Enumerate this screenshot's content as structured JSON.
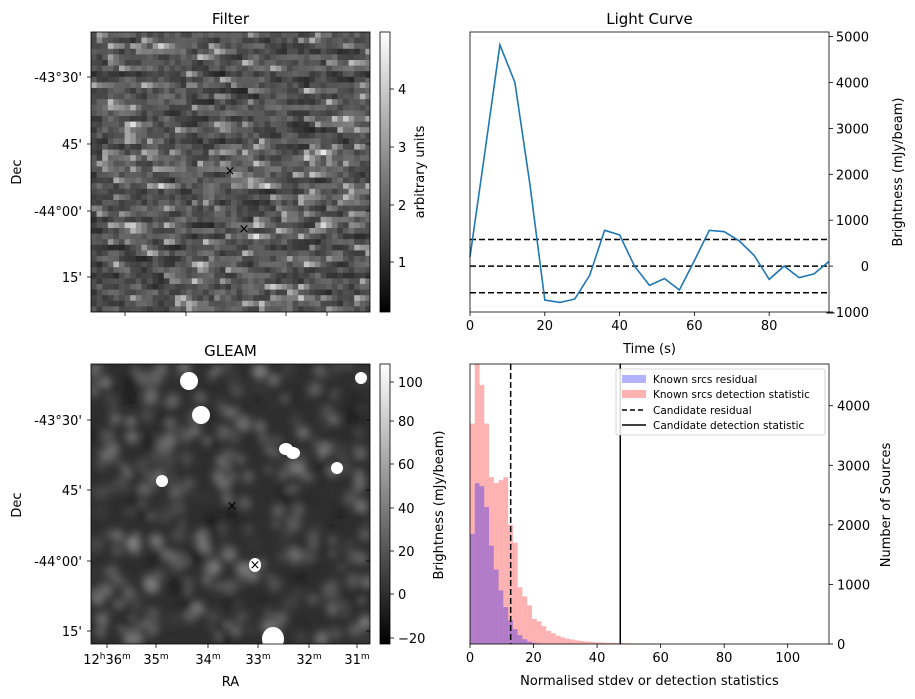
{
  "figure": {
    "panels": {
      "filter": {
        "title": "Filter",
        "ylabel": "Dec",
        "yticks": [
          "-43°30'",
          "45'",
          "-44°00'",
          "15'"
        ],
        "colorbar": {
          "label": "arbitrary units",
          "ticks": [
            "1",
            "2",
            "3",
            "4"
          ],
          "colormap": "gray"
        },
        "markers": [
          {
            "symbol": "×",
            "color": "#ff0000",
            "name": "candidate"
          },
          {
            "symbol": "×",
            "color": "#0000ff",
            "name": "reference"
          }
        ]
      },
      "gleam": {
        "title": "GLEAM",
        "ylabel": "Dec",
        "xlabel": "RA",
        "yticks": [
          "-43°30'",
          "45'",
          "-44°00'",
          "15'"
        ],
        "xticks": [
          {
            "main": "12",
            "sup1": "h",
            "num2": "36",
            "sup2": "m"
          },
          {
            "main": "35",
            "sup1": "m"
          },
          {
            "main": "34",
            "sup1": "m"
          },
          {
            "main": "33",
            "sup1": "m"
          },
          {
            "main": "32",
            "sup1": "m"
          },
          {
            "main": "31",
            "sup1": "m"
          }
        ],
        "colorbar": {
          "label": "Brightness (mJy/beam)",
          "ticks": [
            "−20",
            "0",
            "20",
            "40",
            "60",
            "80",
            "100"
          ],
          "colormap": "gray"
        },
        "markers": [
          {
            "symbol": "×",
            "color": "#ff0000",
            "name": "candidate"
          },
          {
            "symbol": "×",
            "color": "#0000ff",
            "name": "reference"
          }
        ]
      }
    }
  },
  "chart_data": [
    {
      "type": "line",
      "title": "Light Curve",
      "xlabel": "Time (s)",
      "ylabel": "Brightness (mJy/beam)",
      "xlim": [
        0,
        96
      ],
      "ylim": [
        -1000,
        5100
      ],
      "xticks": [
        0,
        20,
        40,
        60,
        80
      ],
      "yticks": [
        -1000,
        0,
        1000,
        2000,
        3000,
        4000,
        5000
      ],
      "color": "#1f77b4",
      "x": [
        0,
        4,
        8,
        12,
        16,
        20,
        24,
        28,
        32,
        36,
        40,
        44,
        48,
        52,
        56,
        60,
        64,
        68,
        72,
        76,
        80,
        84,
        88,
        92,
        96
      ],
      "y": [
        200,
        2500,
        4820,
        4000,
        1800,
        -740,
        -790,
        -720,
        -200,
        780,
        680,
        0,
        -420,
        -270,
        -520,
        120,
        780,
        750,
        550,
        230,
        -290,
        0,
        -250,
        -170,
        100
      ],
      "hlines": [
        {
          "y": 580,
          "style": "dashed"
        },
        {
          "y": 0,
          "style": "dashed"
        },
        {
          "y": -580,
          "style": "dashed"
        }
      ]
    },
    {
      "type": "histogram",
      "xlabel": "Normalised stdev or detection statistics",
      "ylabel": "Number of Sources",
      "xlim": [
        0,
        113
      ],
      "ylim": [
        0,
        4700
      ],
      "xticks": [
        0,
        20,
        40,
        60,
        80,
        100
      ],
      "yticks": [
        0,
        1000,
        2000,
        3000,
        4000
      ],
      "bin_width": 1.5,
      "series": [
        {
          "name": "Known srcs residual",
          "color": "#0000ff",
          "alpha": 0.3,
          "bin_start": 0,
          "counts": [
            1850,
            2700,
            2650,
            2300,
            1650,
            1250,
            900,
            620,
            400,
            250,
            150,
            80,
            40,
            20,
            10
          ]
        },
        {
          "name": "Known srcs detection statistic",
          "color": "#ff0000",
          "alpha": 0.3,
          "bin_start": 0,
          "counts": [
            3700,
            4700,
            4350,
            3700,
            2800,
            2700,
            2750,
            2800,
            2000,
            1700,
            950,
            800,
            650,
            420,
            380,
            300,
            220,
            180,
            140,
            110,
            90,
            75,
            60,
            50,
            42,
            36,
            30,
            26,
            22,
            19,
            16,
            14,
            12,
            10,
            9,
            8,
            7,
            6,
            5,
            5,
            4,
            4,
            3,
            3,
            3,
            3,
            2,
            2,
            2,
            2,
            2,
            2,
            2,
            2,
            1,
            1,
            1,
            1,
            1,
            1,
            1,
            1,
            1,
            1,
            1,
            1,
            1,
            1,
            1,
            1,
            1,
            1,
            1,
            1
          ]
        }
      ],
      "vlines": [
        {
          "name": "Candidate residual",
          "x": 12.8,
          "style": "dashed"
        },
        {
          "name": "Candidate detection statistic",
          "x": 47.3,
          "style": "solid"
        }
      ],
      "legend": "top-right"
    }
  ]
}
